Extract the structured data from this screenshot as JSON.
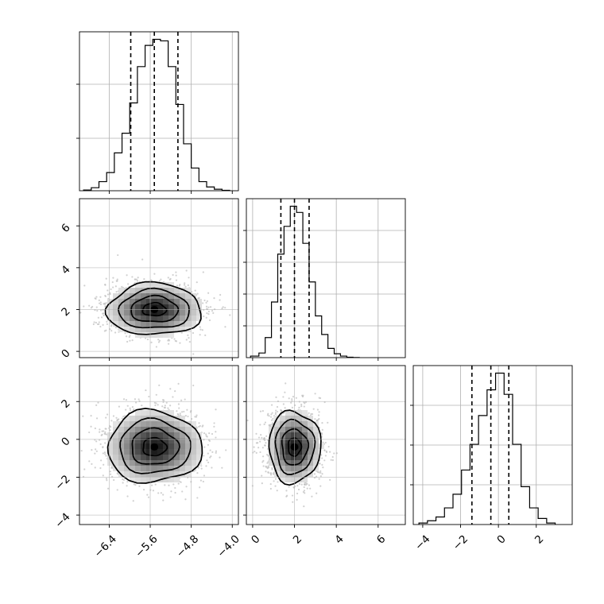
{
  "chart_data": {
    "type": "corner",
    "grid": true,
    "parameters": [
      {
        "name": "",
        "ticks": [
          -6.4,
          -5.6,
          -4.8,
          -4.0
        ],
        "tick_labels": [
          "−6.4",
          "−5.6",
          "−4.8",
          "−4.0"
        ],
        "range": [
          -6.98,
          -3.88
        ],
        "hist_edges": [
          -6.9,
          -6.75,
          -6.6,
          -6.45,
          -6.3,
          -6.15,
          -6.0,
          -5.85,
          -5.7,
          -5.55,
          -5.4,
          -5.25,
          -5.1,
          -4.95,
          -4.8,
          -4.65,
          -4.5,
          -4.35,
          -4.2,
          -4.05
        ],
        "hist_counts": [
          0.005,
          0.02,
          0.06,
          0.12,
          0.25,
          0.38,
          0.58,
          0.82,
          0.96,
          1.0,
          0.99,
          0.82,
          0.57,
          0.31,
          0.15,
          0.06,
          0.025,
          0.01,
          0.003
        ],
        "quantiles": [
          -5.98,
          -5.52,
          -5.06
        ]
      },
      {
        "name": "",
        "ticks": [
          0,
          2,
          4,
          6
        ],
        "tick_labels": [
          "0",
          "2",
          "4",
          "6"
        ],
        "range": [
          -0.3,
          7.3
        ],
        "hist_edges": [
          -0.1,
          0.3,
          0.6,
          0.9,
          1.2,
          1.5,
          1.8,
          2.1,
          2.4,
          2.7,
          3.0,
          3.3,
          3.6,
          3.9,
          4.2,
          4.5,
          4.8,
          5.1
        ],
        "hist_counts": [
          0.01,
          0.03,
          0.13,
          0.36,
          0.67,
          0.85,
          0.98,
          0.94,
          0.74,
          0.49,
          0.27,
          0.15,
          0.06,
          0.025,
          0.01,
          0.003,
          0.001
        ],
        "quantiles": [
          1.35,
          2.0,
          2.7
        ]
      },
      {
        "name": "",
        "ticks": [
          -4,
          -2,
          0,
          2
        ],
        "tick_labels": [
          "−4",
          "−2",
          "0",
          "2"
        ],
        "range": [
          -4.5,
          3.9
        ],
        "hist_edges": [
          -4.2,
          -3.75,
          -3.3,
          -2.85,
          -2.4,
          -1.95,
          -1.5,
          -1.05,
          -0.6,
          -0.15,
          0.3,
          0.75,
          1.2,
          1.65,
          2.1,
          2.55,
          3.0
        ],
        "hist_counts": [
          0.01,
          0.025,
          0.05,
          0.11,
          0.2,
          0.36,
          0.53,
          0.72,
          0.89,
          1.0,
          0.86,
          0.53,
          0.25,
          0.11,
          0.04,
          0.01
        ],
        "quantiles": [
          -1.4,
          -0.4,
          0.55
        ]
      }
    ],
    "hist_ticks": [
      [
        0.33,
        0.67
      ],
      [
        0.2,
        0.4,
        0.6,
        0.8
      ],
      [
        0.25,
        0.5,
        0.75
      ]
    ],
    "density_panels": [
      {
        "x_param": 0,
        "y_param": 1,
        "mean": [
          -5.52,
          2.0
        ],
        "sd": [
          0.46,
          0.62
        ],
        "contour_radii": [
          0.5,
          1.0,
          1.5,
          2.0
        ]
      },
      {
        "x_param": 0,
        "y_param": 2,
        "mean": [
          -5.52,
          -0.4
        ],
        "sd": [
          0.46,
          0.95
        ],
        "contour_radii": [
          0.5,
          1.0,
          1.5,
          2.0
        ]
      },
      {
        "x_param": 1,
        "y_param": 2,
        "mean": [
          2.0,
          -0.4
        ],
        "sd": [
          0.62,
          0.95
        ],
        "contour_radii": [
          0.5,
          1.0,
          1.5,
          2.0
        ]
      }
    ]
  }
}
